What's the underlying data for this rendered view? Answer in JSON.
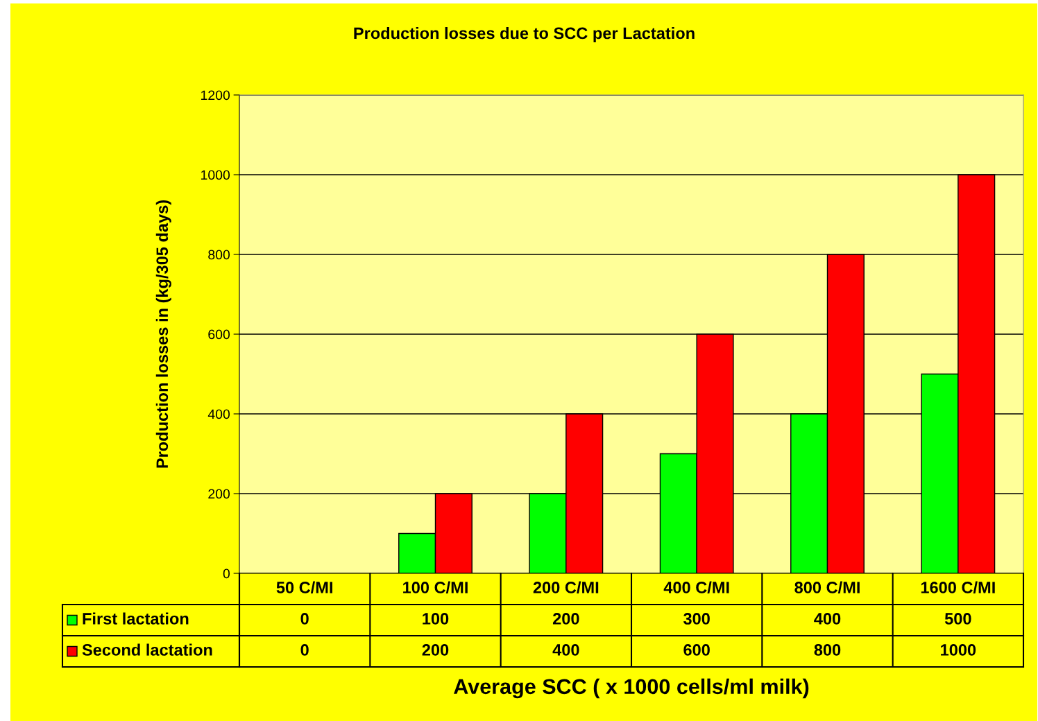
{
  "chart_data": {
    "type": "bar",
    "title": "Production losses due to SCC per Lactation",
    "xlabel": "Average SCC ( x 1000 cells/ml milk)",
    "ylabel": "Production losses in (kg/305 days)",
    "categories": [
      "50 C/MI",
      "100 C/MI",
      "200 C/MI",
      "400 C/MI",
      "800 C/MI",
      "1600 C/MI"
    ],
    "series": [
      {
        "name": "First lactation",
        "color": "#00ff00",
        "values": [
          0,
          100,
          200,
          300,
          400,
          500
        ]
      },
      {
        "name": "Second lactation",
        "color": "#ff0000",
        "values": [
          0,
          200,
          400,
          600,
          800,
          1000
        ]
      }
    ],
    "ylim": [
      0,
      1200
    ],
    "yticks": [
      0,
      200,
      400,
      600,
      800,
      1000,
      1200
    ],
    "grid": "y",
    "data_labels": true,
    "legend": "bottom left"
  }
}
